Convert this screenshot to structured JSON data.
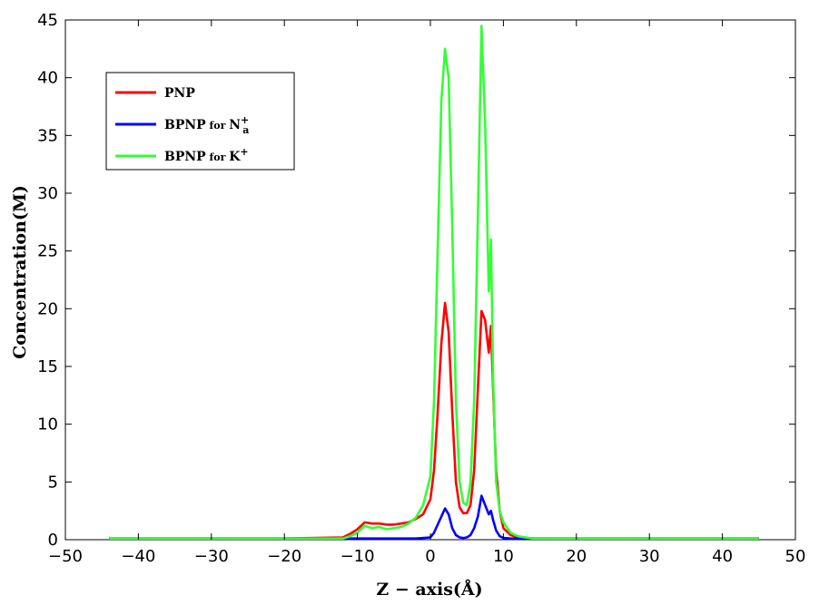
{
  "chart_data": {
    "type": "line",
    "xlabel": "Z − axis(Å)",
    "ylabel": "Concentration(M)",
    "xlim": [
      -50,
      50
    ],
    "ylim": [
      0,
      45
    ],
    "xticks": [
      -50,
      -40,
      -30,
      -20,
      -10,
      0,
      10,
      20,
      30,
      40,
      50
    ],
    "yticks": [
      0,
      5,
      10,
      15,
      20,
      25,
      30,
      35,
      40,
      45
    ],
    "grid": false,
    "legend_position": "top-left",
    "series": [
      {
        "name": "PNP",
        "legend_main": "PNP",
        "legend_for": "",
        "legend_ion": "",
        "legend_sup": "",
        "legend_sub": "",
        "color": "#ff0000",
        "x": [
          -44,
          -20,
          -12,
          -11,
          -10,
          -9,
          -8,
          -7,
          -6,
          -5,
          -4,
          -3,
          -2,
          -1,
          0,
          0.5,
          1,
          1.5,
          2,
          2.5,
          3,
          3.5,
          4,
          4.5,
          5,
          5.5,
          6,
          6.5,
          7,
          7.5,
          8,
          8.3,
          8.6,
          9,
          9.5,
          10,
          11,
          12,
          14,
          20,
          45
        ],
        "y": [
          0.1,
          0.1,
          0.2,
          0.5,
          0.9,
          1.5,
          1.4,
          1.4,
          1.3,
          1.3,
          1.4,
          1.5,
          1.8,
          2.2,
          3.5,
          6.0,
          11.0,
          17.0,
          20.5,
          18.0,
          11.0,
          5.0,
          2.8,
          2.3,
          2.3,
          3.0,
          6.0,
          13.0,
          19.8,
          19.0,
          16.2,
          18.5,
          13.0,
          6.0,
          2.5,
          1.0,
          0.4,
          0.2,
          0.1,
          0.1,
          0.1
        ]
      },
      {
        "name": "BPNP for Na+",
        "legend_main": "BPNP",
        "legend_for": "for",
        "legend_ion": "N",
        "legend_sup": "+",
        "legend_sub": "a",
        "color": "#0000ff",
        "x": [
          -44,
          -11,
          -10,
          -9,
          -8,
          -6,
          -4,
          -2,
          0,
          0.5,
          1,
          1.5,
          2,
          2.5,
          3,
          3.5,
          4,
          4.5,
          5,
          5.5,
          6,
          6.5,
          7,
          7.5,
          8,
          8.3,
          8.6,
          9,
          9.5,
          10,
          11,
          45
        ],
        "y": [
          0.1,
          0.1,
          0.1,
          0.1,
          0.1,
          0.1,
          0.1,
          0.1,
          0.2,
          0.6,
          1.3,
          2.0,
          2.7,
          2.2,
          1.0,
          0.4,
          0.2,
          0.15,
          0.2,
          0.4,
          1.0,
          2.0,
          3.8,
          3.0,
          2.2,
          2.5,
          1.7,
          0.8,
          0.3,
          0.15,
          0.1,
          0.1
        ]
      },
      {
        "name": "BPNP for K+",
        "legend_main": "BPNP",
        "legend_for": "for",
        "legend_ion": "K",
        "legend_sup": "+",
        "legend_sub": "",
        "color": "#33ff33",
        "x": [
          -44,
          -20,
          -12,
          -11,
          -10,
          -9,
          -8,
          -7,
          -6,
          -5,
          -4,
          -3,
          -2,
          -1,
          0,
          0.5,
          1,
          1.5,
          2,
          2.5,
          3,
          3.5,
          4,
          4.5,
          5,
          5.5,
          6,
          6.5,
          7,
          7.5,
          8,
          8.3,
          8.6,
          9,
          9.5,
          10,
          11,
          12,
          14,
          20,
          45
        ],
        "y": [
          0.1,
          0.1,
          0.1,
          0.3,
          0.6,
          1.2,
          1.0,
          1.1,
          0.9,
          1.0,
          1.1,
          1.4,
          1.9,
          3.0,
          5.5,
          12.0,
          25.0,
          38.0,
          42.5,
          40.0,
          27.0,
          12.0,
          5.0,
          3.2,
          3.0,
          5.0,
          12.0,
          28.0,
          44.5,
          36.0,
          21.5,
          26.0,
          14.0,
          5.0,
          2.5,
          1.5,
          0.6,
          0.3,
          0.1,
          0.1,
          0.1
        ]
      }
    ]
  }
}
